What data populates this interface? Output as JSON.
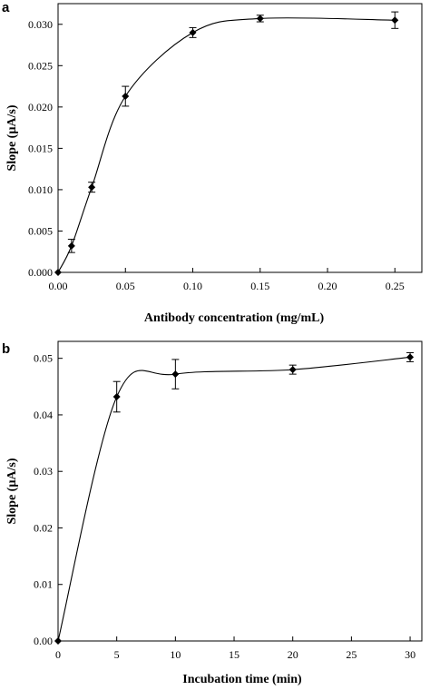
{
  "panels": [
    {
      "letter": "a"
    },
    {
      "letter": "b"
    }
  ],
  "chart_data": [
    {
      "type": "line",
      "title": "",
      "xlabel": "Antibody concentration (mg/mL)",
      "ylabel": "Slope  (µA/s)",
      "xlim": [
        0,
        0.27
      ],
      "ylim": [
        0,
        0.0325
      ],
      "x_ticks": [
        0,
        0.05,
        0.1,
        0.15,
        0.2,
        0.25
      ],
      "x_tick_labels": [
        "0.00",
        "0.05",
        "0.10",
        "0.15",
        "0.20",
        "0.25"
      ],
      "y_ticks": [
        0,
        0.005,
        0.01,
        0.015,
        0.02,
        0.025,
        0.03
      ],
      "y_tick_labels": [
        "0.000",
        "0.005",
        "0.010",
        "0.015",
        "0.020",
        "0.025",
        "0.030"
      ],
      "grid": false,
      "marker": "diamond",
      "series": [
        {
          "x": [
            0,
            0.01,
            0.025,
            0.05,
            0.1,
            0.15,
            0.25
          ],
          "values": [
            0,
            0.0032,
            0.0103,
            0.0213,
            0.029,
            0.0307,
            0.0305
          ],
          "error": [
            0,
            0.0008,
            0.0006,
            0.0012,
            0.0006,
            0.0004,
            0.001
          ]
        }
      ]
    },
    {
      "type": "line",
      "title": "",
      "xlabel": "Incubation time (min)",
      "ylabel": "Slope (µA/s)",
      "xlim": [
        0,
        31
      ],
      "ylim": [
        0,
        0.053
      ],
      "x_ticks": [
        0,
        5,
        10,
        15,
        20,
        25,
        30
      ],
      "x_tick_labels": [
        "0",
        "5",
        "10",
        "15",
        "20",
        "25",
        "30"
      ],
      "y_ticks": [
        0,
        0.01,
        0.02,
        0.03,
        0.04,
        0.05
      ],
      "y_tick_labels": [
        "0.00",
        "0.01",
        "0.02",
        "0.03",
        "0.04",
        "0.05"
      ],
      "grid": false,
      "marker": "diamond",
      "series": [
        {
          "x": [
            0,
            5,
            10,
            20,
            30
          ],
          "values": [
            0,
            0.0432,
            0.0472,
            0.048,
            0.0502
          ],
          "error": [
            0,
            0.0027,
            0.0026,
            0.0008,
            0.0008
          ]
        }
      ]
    }
  ]
}
